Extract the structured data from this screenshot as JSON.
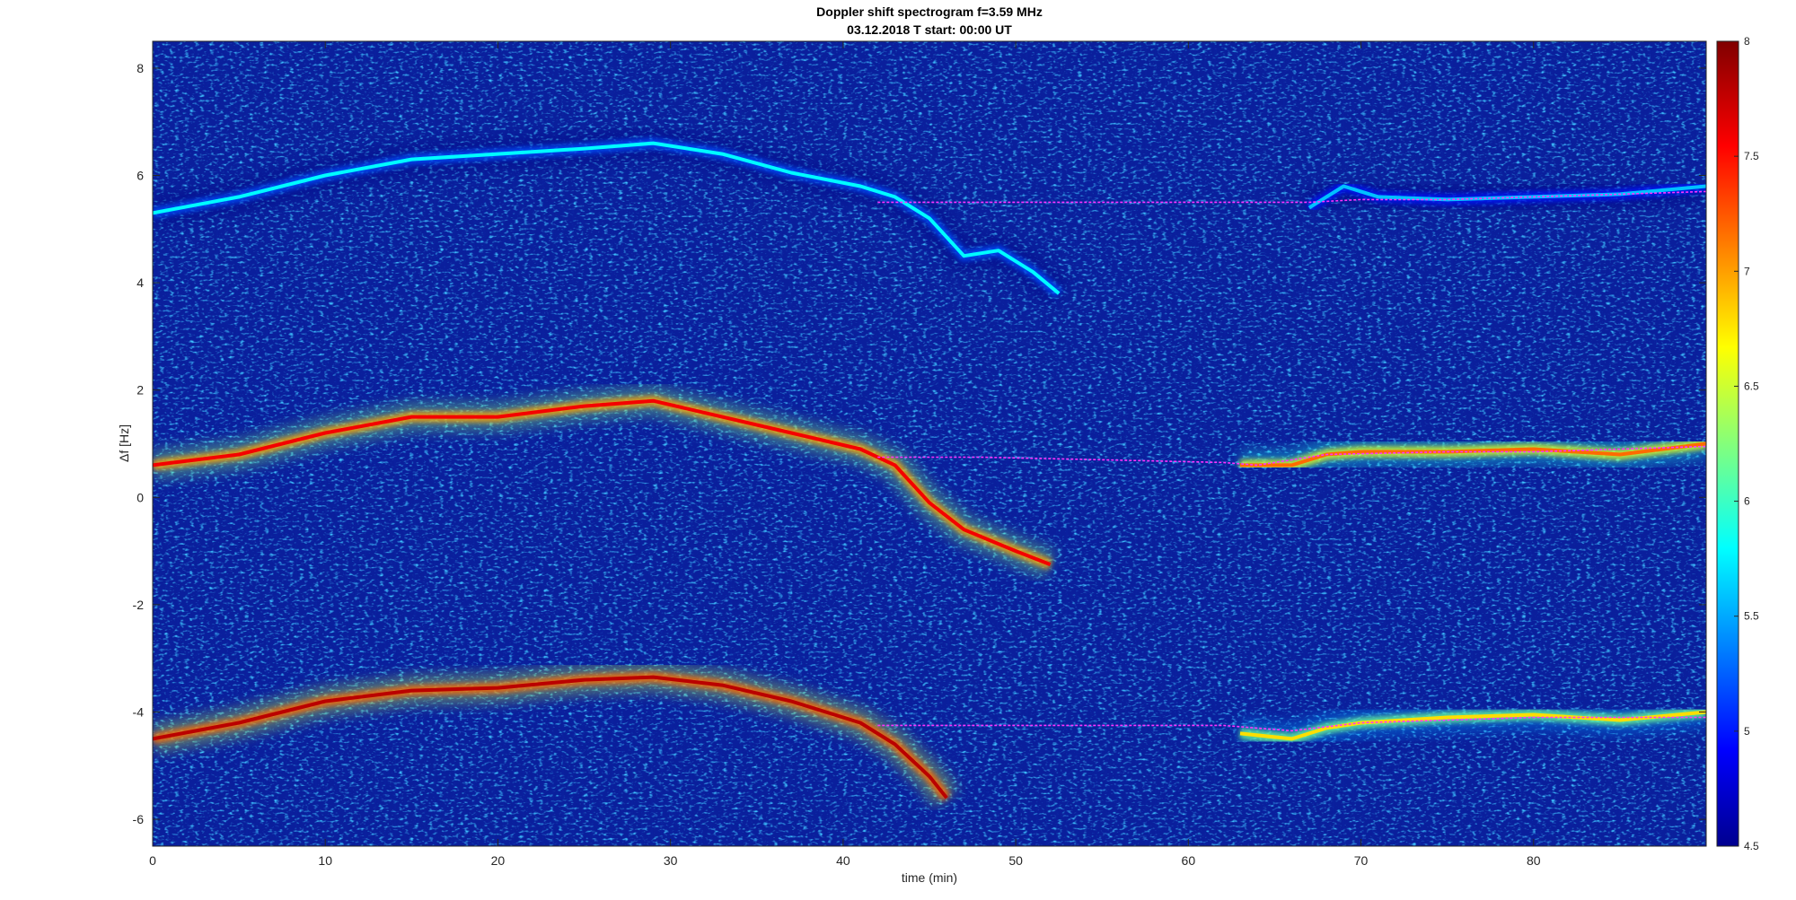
{
  "chart_data": {
    "type": "heatmap",
    "title": "Doppler shift spectrogram f=3.59 MHz",
    "subtitle": "03.12.2018   T start: 00:00 UT",
    "xlabel": "time (min)",
    "ylabel": "Δf [Hz]",
    "xlim": [
      0,
      90
    ],
    "ylim": [
      -6.5,
      8.5
    ],
    "xticks": [
      "0",
      "10",
      "20",
      "30",
      "40",
      "50",
      "60",
      "70",
      "80"
    ],
    "xtick_values": [
      0,
      10,
      20,
      30,
      40,
      50,
      60,
      70,
      80
    ],
    "yticks": [
      "8",
      "6",
      "4",
      "2",
      "0",
      "-2",
      "-4",
      "-6"
    ],
    "ytick_values": [
      8,
      6,
      4,
      2,
      0,
      -2,
      -4,
      -6
    ],
    "colormap": "jet",
    "colorbar": {
      "range": [
        4.5,
        8
      ],
      "ticks": [
        "8",
        "7.5",
        "7",
        "6.5",
        "6",
        "5.5",
        "5",
        "4.5"
      ],
      "tick_values": [
        8,
        7.5,
        7,
        6.5,
        6,
        5.5,
        5,
        4.5
      ]
    },
    "background_color": "#0a1f9c",
    "traces": [
      {
        "mode": "upper",
        "intensity": 5.8,
        "points": [
          [
            0,
            5.3
          ],
          [
            5,
            5.6
          ],
          [
            10,
            6.0
          ],
          [
            15,
            6.3
          ],
          [
            20,
            6.4
          ],
          [
            25,
            6.5
          ],
          [
            29,
            6.6
          ],
          [
            33,
            6.4
          ],
          [
            37,
            6.05
          ],
          [
            41,
            5.8
          ],
          [
            43,
            5.6
          ],
          [
            45,
            5.2
          ],
          [
            47,
            4.5
          ],
          [
            49,
            4.6
          ],
          [
            51,
            4.2
          ],
          [
            52.5,
            3.8
          ]
        ]
      },
      {
        "mode": "middle",
        "intensity": 7.6,
        "points": [
          [
            0,
            0.6
          ],
          [
            5,
            0.8
          ],
          [
            10,
            1.2
          ],
          [
            15,
            1.5
          ],
          [
            20,
            1.5
          ],
          [
            25,
            1.7
          ],
          [
            29,
            1.8
          ],
          [
            33,
            1.5
          ],
          [
            37,
            1.2
          ],
          [
            41,
            0.9
          ],
          [
            43,
            0.6
          ],
          [
            45,
            -0.1
          ],
          [
            47,
            -0.6
          ],
          [
            50,
            -1.0
          ],
          [
            52,
            -1.25
          ]
        ]
      },
      {
        "mode": "lower",
        "intensity": 7.8,
        "points": [
          [
            0,
            -4.5
          ],
          [
            5,
            -4.2
          ],
          [
            10,
            -3.8
          ],
          [
            15,
            -3.6
          ],
          [
            20,
            -3.55
          ],
          [
            25,
            -3.4
          ],
          [
            29,
            -3.35
          ],
          [
            33,
            -3.5
          ],
          [
            37,
            -3.8
          ],
          [
            41,
            -4.2
          ],
          [
            43,
            -4.6
          ],
          [
            45,
            -5.2
          ],
          [
            46,
            -5.6
          ]
        ]
      },
      {
        "mode": "upper-late",
        "intensity": 5.6,
        "points": [
          [
            67,
            5.4
          ],
          [
            69,
            5.8
          ],
          [
            71,
            5.6
          ],
          [
            75,
            5.55
          ],
          [
            80,
            5.6
          ],
          [
            85,
            5.65
          ],
          [
            90,
            5.8
          ]
        ]
      },
      {
        "mode": "middle-late",
        "intensity": 7.2,
        "points": [
          [
            63,
            0.6
          ],
          [
            66,
            0.6
          ],
          [
            68,
            0.8
          ],
          [
            70,
            0.85
          ],
          [
            75,
            0.85
          ],
          [
            80,
            0.9
          ],
          [
            85,
            0.8
          ],
          [
            90,
            1.0
          ]
        ]
      },
      {
        "mode": "lower-late",
        "intensity": 6.8,
        "points": [
          [
            63,
            -4.4
          ],
          [
            66,
            -4.5
          ],
          [
            68,
            -4.3
          ],
          [
            70,
            -4.2
          ],
          [
            75,
            -4.1
          ],
          [
            80,
            -4.05
          ],
          [
            85,
            -4.15
          ],
          [
            90,
            -4.0
          ]
        ]
      }
    ],
    "interpolation_lines": [
      {
        "color": "#ff33ff",
        "points": [
          [
            42,
            5.5
          ],
          [
            48,
            5.5
          ],
          [
            55,
            5.5
          ],
          [
            62,
            5.5
          ],
          [
            67,
            5.5
          ],
          [
            70,
            5.55
          ],
          [
            75,
            5.55
          ],
          [
            80,
            5.6
          ],
          [
            85,
            5.65
          ],
          [
            90,
            5.7
          ]
        ]
      },
      {
        "color": "#ff33ff",
        "points": [
          [
            42,
            0.75
          ],
          [
            48,
            0.75
          ],
          [
            55,
            0.7
          ],
          [
            62,
            0.65
          ],
          [
            64,
            0.6
          ],
          [
            68,
            0.8
          ],
          [
            75,
            0.85
          ],
          [
            80,
            0.85
          ],
          [
            90,
            0.95
          ]
        ]
      },
      {
        "color": "#ff33ff",
        "points": [
          [
            42,
            -4.25
          ],
          [
            50,
            -4.25
          ],
          [
            56,
            -4.25
          ],
          [
            62,
            -4.25
          ],
          [
            66,
            -4.35
          ],
          [
            70,
            -4.2
          ],
          [
            80,
            -4.1
          ],
          [
            90,
            -4.1
          ]
        ]
      }
    ]
  }
}
